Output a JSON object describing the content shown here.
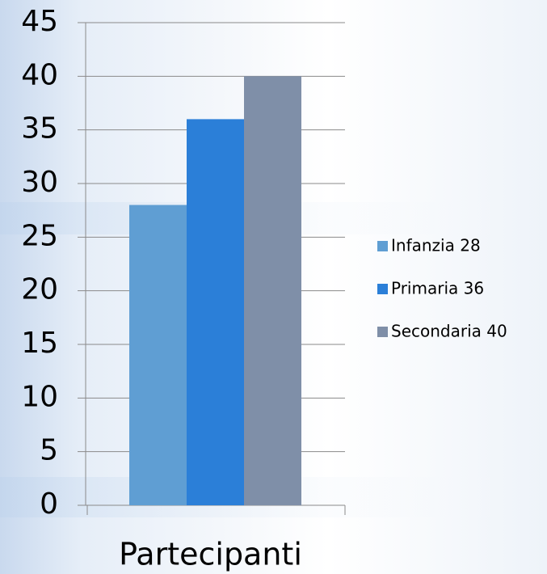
{
  "chart_data": {
    "type": "bar",
    "categories": [
      "Partecipanti"
    ],
    "series": [
      {
        "name": "Infanzia 28",
        "color": "#5f9ed3",
        "values": [
          28
        ]
      },
      {
        "name": "Primaria 36",
        "color": "#2b7fd8",
        "values": [
          36
        ]
      },
      {
        "name": "Secondaria 40",
        "color": "#7f8fa8",
        "values": [
          40
        ]
      }
    ],
    "ylim": [
      0,
      45
    ],
    "yticks": [
      0,
      5,
      10,
      15,
      20,
      25,
      30,
      35,
      40,
      45
    ],
    "grid": true,
    "legend": "right"
  }
}
